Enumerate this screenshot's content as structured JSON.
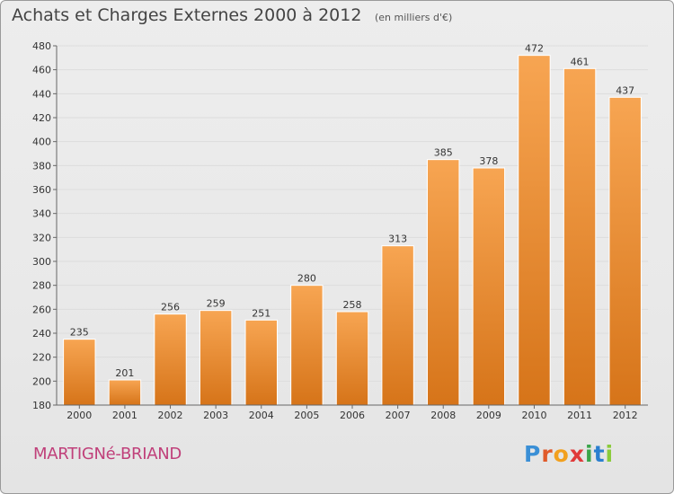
{
  "header": {
    "title": "Achats et Charges Externes 2000 à 2012",
    "unit": "(en milliers d'€)"
  },
  "footer": {
    "town": "MARTIGNé-BRIAND",
    "brand_letters": [
      "P",
      "r",
      "o",
      "x",
      "i",
      "t",
      "i"
    ],
    "brand_colors": [
      "#3a8fd6",
      "#e05a2a",
      "#f2a01e",
      "#e03a3a",
      "#3aa54a",
      "#2a7fd0",
      "#8acb3a"
    ]
  },
  "colors": {
    "bar_top": "#f7a552",
    "bar_bottom": "#d67419",
    "bar_border": "#ffffff",
    "grid": "#dddddd",
    "axis": "#666666"
  },
  "chart_data": {
    "type": "bar",
    "title": "Achats et Charges Externes 2000 à 2012",
    "subtitle": "(en milliers d'€)",
    "categories": [
      "2000",
      "2001",
      "2002",
      "2003",
      "2004",
      "2005",
      "2006",
      "2007",
      "2008",
      "2009",
      "2010",
      "2011",
      "2012"
    ],
    "values": [
      235,
      201,
      256,
      259,
      251,
      280,
      258,
      313,
      385,
      378,
      472,
      461,
      437
    ],
    "ylim": [
      180,
      480
    ],
    "yticks": [
      180,
      200,
      220,
      240,
      260,
      280,
      300,
      320,
      340,
      360,
      380,
      400,
      420,
      440,
      460,
      480
    ],
    "grid": true,
    "xlabel": "",
    "ylabel": ""
  }
}
